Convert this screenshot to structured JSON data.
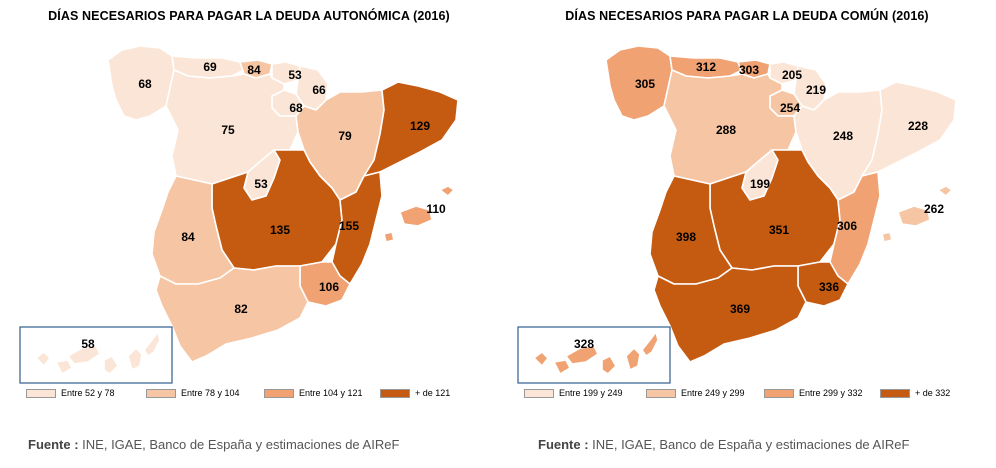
{
  "palette": {
    "c1": "#fbe5d6",
    "c2": "#f6c5a3",
    "c3": "#f0a273",
    "c4": "#c55a11"
  },
  "maps": [
    {
      "title": "DÍAS NECESARIOS PARA PAGAR LA DEUDA AUTONÓMICA (2016)",
      "regions": {
        "galicia": {
          "value": "68",
          "cls": "c1"
        },
        "asturias": {
          "value": "69",
          "cls": "c1"
        },
        "cantabria": {
          "value": "84",
          "cls": "c2"
        },
        "pais_vasco": {
          "value": "53",
          "cls": "c1"
        },
        "navarra": {
          "value": "66",
          "cls": "c1"
        },
        "la_rioja": {
          "value": "68",
          "cls": "c1"
        },
        "castilla_leon": {
          "value": "75",
          "cls": "c1"
        },
        "aragon": {
          "value": "79",
          "cls": "c2"
        },
        "cataluna": {
          "value": "129",
          "cls": "c4"
        },
        "madrid": {
          "value": "53",
          "cls": "c1"
        },
        "castilla_mancha": {
          "value": "135",
          "cls": "c4"
        },
        "valencia": {
          "value": "155",
          "cls": "c4"
        },
        "baleares": {
          "value": "110",
          "cls": "c3"
        },
        "extremadura": {
          "value": "84",
          "cls": "c2"
        },
        "andalucia": {
          "value": "82",
          "cls": "c2"
        },
        "murcia": {
          "value": "106",
          "cls": "c3"
        },
        "canarias": {
          "value": "58",
          "cls": "c1"
        }
      },
      "legend": [
        "Entre 52 y 78",
        "Entre 78 y 104",
        "Entre 104 y 121",
        "+ de 121"
      ],
      "source_label": "Fuente :",
      "source_text": " INE, IGAE, Banco de España y estimaciones de AIReF"
    },
    {
      "title": "DÍAS NECESARIOS PARA PAGAR LA DEUDA COMÚN (2016)",
      "regions": {
        "galicia": {
          "value": "305",
          "cls": "c3"
        },
        "asturias": {
          "value": "312",
          "cls": "c3"
        },
        "cantabria": {
          "value": "303",
          "cls": "c3"
        },
        "pais_vasco": {
          "value": "205",
          "cls": "c1"
        },
        "navarra": {
          "value": "219",
          "cls": "c1"
        },
        "la_rioja": {
          "value": "254",
          "cls": "c2"
        },
        "castilla_leon": {
          "value": "288",
          "cls": "c2"
        },
        "aragon": {
          "value": "248",
          "cls": "c1"
        },
        "cataluna": {
          "value": "228",
          "cls": "c1"
        },
        "madrid": {
          "value": "199",
          "cls": "c1"
        },
        "castilla_mancha": {
          "value": "351",
          "cls": "c4"
        },
        "valencia": {
          "value": "306",
          "cls": "c3"
        },
        "baleares": {
          "value": "262",
          "cls": "c2"
        },
        "extremadura": {
          "value": "398",
          "cls": "c4"
        },
        "andalucia": {
          "value": "369",
          "cls": "c4"
        },
        "murcia": {
          "value": "336",
          "cls": "c4"
        },
        "canarias": {
          "value": "328",
          "cls": "c3"
        }
      },
      "legend": [
        "Entre 199 y 249",
        "Entre 249 y 299",
        "Entre 299 y 332",
        "+ de 332"
      ],
      "source_label": "Fuente :",
      "source_text": " INE, IGAE, Banco de España y estimaciones de AIReF"
    }
  ]
}
